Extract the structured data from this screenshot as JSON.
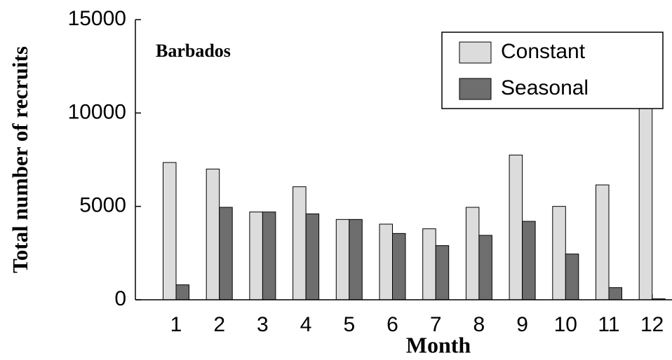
{
  "chart_data": {
    "type": "bar",
    "annotation": "Barbados",
    "x_label": "Month",
    "y_label": "Total number of recruits",
    "categories": [
      "1",
      "2",
      "3",
      "4",
      "5",
      "6",
      "7",
      "8",
      "9",
      "10",
      "11",
      "12"
    ],
    "series": [
      {
        "name": "Constant",
        "color": "#dcdcdc",
        "values": [
          7350,
          7000,
          4700,
          6050,
          4300,
          4050,
          3800,
          4950,
          7750,
          5000,
          6150,
          10700
        ]
      },
      {
        "name": "Seasonal",
        "color": "#6e6e6e",
        "values": [
          800,
          4950,
          4700,
          4600,
          4300,
          3550,
          2900,
          3450,
          4200,
          2450,
          650,
          50
        ]
      }
    ],
    "ylim": [
      0,
      15000
    ],
    "yticks": [
      0,
      5000,
      10000,
      15000
    ],
    "legend": "top-right"
  }
}
